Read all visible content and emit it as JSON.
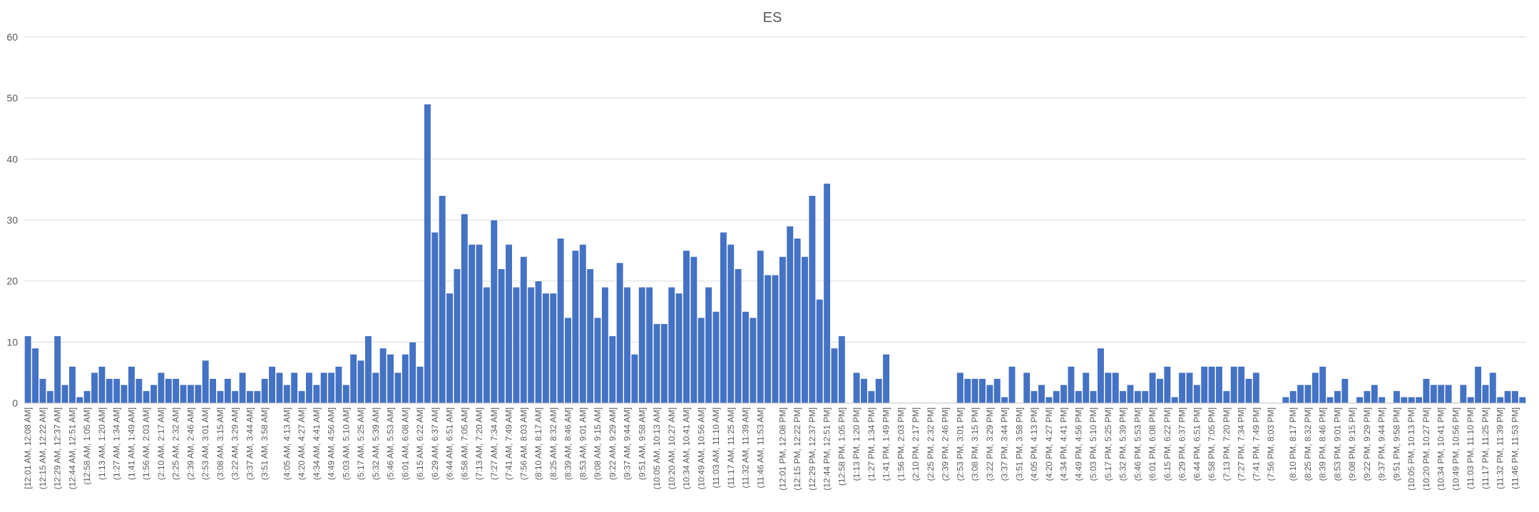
{
  "chart_data": {
    "type": "bar",
    "title": "ES",
    "xlabel": "",
    "ylabel": "",
    "ylim": [
      0,
      60
    ],
    "yticks": [
      0,
      10,
      20,
      30,
      40,
      50,
      60
    ],
    "grid": true,
    "legend": "none",
    "bar_color": "#4472c4",
    "x_tick_labels": [
      "[12:01 AM, 12:08 AM]",
      "(12:15 AM, 12:22 AM]",
      "(12:29 AM, 12:37 AM]",
      "(12:44 AM, 12:51 AM]",
      "(12:58 AM, 1:05 AM]",
      "(1:13 AM, 1:20 AM]",
      "(1:27 AM, 1:34 AM]",
      "(1:41 AM, 1:49 AM]",
      "(1:56 AM, 2:03 AM]",
      "(2:10 AM, 2:17 AM]",
      "(2:25 AM, 2:32 AM]",
      "(2:39 AM, 2:46 AM]",
      "(2:53 AM, 3:01 AM]",
      "(3:08 AM, 3:15 AM]",
      "(3:22 AM, 3:29 AM]",
      "(3:37 AM, 3:44 AM]",
      "(3:51 AM, 3:58 AM]",
      "(4:05 AM, 4:13 AM]",
      "(4:20 AM, 4:27 AM]",
      "(4:34 AM, 4:41 AM]",
      "(4:49 AM, 4:56 AM]",
      "(5:03 AM, 5:10 AM]",
      "(5:17 AM, 5:25 AM]",
      "(5:32 AM, 5:39 AM]",
      "(5:46 AM, 5:53 AM]",
      "(6:01 AM, 6:08 AM]",
      "(6:15 AM, 6:22 AM]",
      "(6:29 AM, 6:37 AM]",
      "(6:44 AM, 6:51 AM]",
      "(6:58 AM, 7:05 AM]",
      "(7:13 AM, 7:20 AM]",
      "(7:27 AM, 7:34 AM]",
      "(7:41 AM, 7:49 AM]",
      "(7:56 AM, 8:03 AM]",
      "(8:10 AM, 8:17 AM]",
      "(8:25 AM, 8:32 AM]",
      "(8:39 AM, 8:46 AM]",
      "(8:53 AM, 9:01 AM]",
      "(9:08 AM, 9:15 AM]",
      "(9:22 AM, 9:29 AM]",
      "(9:37 AM, 9:44 AM]",
      "(9:51 AM, 9:58 AM]",
      "(10:05 AM, 10:13 AM]",
      "(10:20 AM, 10:27 AM]",
      "(10:34 AM, 10:41 AM]",
      "(10:49 AM, 10:56 AM]",
      "(11:03 AM, 11:10 AM]",
      "(11:17 AM, 11:25 AM]",
      "(11:32 AM, 11:39 AM]",
      "(11:46 AM, 11:53 AM]",
      "(12:01 PM, 12:08 PM]",
      "(12:15 PM, 12:22 PM]",
      "(12:29 PM, 12:37 PM]",
      "(12:44 PM, 12:51 PM]",
      "(12:58 PM, 1:05 PM]",
      "(1:13 PM, 1:20 PM]",
      "(1:27 PM, 1:34 PM]",
      "(1:41 PM, 1:49 PM]",
      "(1:56 PM, 2:03 PM]",
      "(2:10 PM, 2:17 PM]",
      "(2:25 PM, 2:32 PM]",
      "(2:39 PM, 2:46 PM]",
      "(2:53 PM, 3:01 PM]",
      "(3:08 PM, 3:15 PM]",
      "(3:22 PM, 3:29 PM]",
      "(3:37 PM, 3:44 PM]",
      "(3:51 PM, 3:58 PM]",
      "(4:05 PM, 4:13 PM]",
      "(4:20 PM, 4:27 PM]",
      "(4:34 PM, 4:41 PM]",
      "(4:49 PM, 4:56 PM]",
      "(5:03 PM, 5:10 PM]",
      "(5:17 PM, 5:25 PM]",
      "(5:32 PM, 5:39 PM]",
      "(5:46 PM, 5:53 PM]",
      "(6:01 PM, 6:08 PM]",
      "(6:15 PM, 6:22 PM]",
      "(6:29 PM, 6:37 PM]",
      "(6:44 PM, 6:51 PM]",
      "(6:58 PM, 7:05 PM]",
      "(7:13 PM, 7:20 PM]",
      "(7:27 PM, 7:34 PM]",
      "(7:41 PM, 7:49 PM]",
      "(7:56 PM, 8:03 PM]",
      "(8:10 PM, 8:17 PM]",
      "(8:25 PM, 8:32 PM]",
      "(8:39 PM, 8:46 PM]",
      "(8:53 PM, 9:01 PM]",
      "(9:08 PM, 9:15 PM]",
      "(9:22 PM, 9:29 PM]",
      "(9:37 PM, 9:44 PM]",
      "(9:51 PM, 9:58 PM]",
      "(10:05 PM, 10:13 PM]",
      "(10:20 PM, 10:27 PM]",
      "(10:34 PM, 10:41 PM]",
      "(10:49 PM, 10:56 PM]",
      "(11:03 PM, 11:10 PM]",
      "(11:17 PM, 11:25 PM]",
      "(11:32 PM, 11:39 PM]",
      "(11:46 PM, 11:53 PM]"
    ],
    "values": [
      11,
      9,
      4,
      2,
      11,
      3,
      6,
      1,
      2,
      5,
      6,
      4,
      4,
      3,
      6,
      4,
      2,
      3,
      5,
      4,
      4,
      3,
      3,
      3,
      7,
      4,
      2,
      4,
      2,
      5,
      2,
      2,
      4,
      6,
      5,
      3,
      5,
      2,
      5,
      3,
      5,
      5,
      6,
      3,
      8,
      7,
      11,
      5,
      9,
      8,
      5,
      8,
      10,
      6,
      49,
      28,
      34,
      18,
      22,
      31,
      26,
      26,
      19,
      30,
      22,
      26,
      19,
      24,
      19,
      20,
      18,
      18,
      27,
      14,
      25,
      26,
      22,
      14,
      19,
      11,
      23,
      19,
      8,
      19,
      19,
      13,
      13,
      19,
      18,
      25,
      24,
      14,
      19,
      15,
      28,
      26,
      22,
      15,
      14,
      25,
      21,
      21,
      24,
      29,
      27,
      24,
      34,
      17,
      36,
      9,
      11,
      0,
      5,
      4,
      2,
      4,
      8,
      0,
      0,
      0,
      0,
      0,
      0,
      0,
      0,
      0,
      5,
      4,
      4,
      4,
      3,
      4,
      1,
      6,
      0,
      5,
      2,
      3,
      1,
      2,
      3,
      6,
      2,
      5,
      2,
      9,
      5,
      5,
      2,
      3,
      2,
      2,
      5,
      4,
      6,
      1,
      5,
      5,
      3,
      6,
      6,
      6,
      2,
      6,
      6,
      4,
      5,
      0,
      0,
      0,
      1,
      2,
      3,
      3,
      5,
      6,
      1,
      2,
      4,
      0,
      1,
      2,
      3,
      1,
      0,
      2,
      1,
      1,
      1,
      4,
      3,
      3,
      3,
      0,
      3,
      1,
      6,
      3,
      5,
      1,
      2,
      2,
      1
    ]
  }
}
